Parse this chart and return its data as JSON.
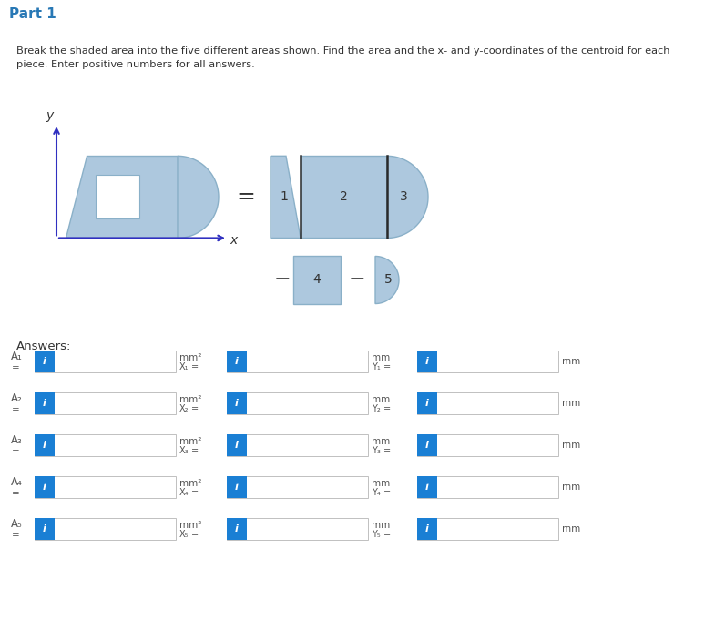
{
  "title": "Part 1",
  "desc1": "Break the shaded area into the five different areas shown. Find the area and the x- and y-coordinates of the centroid for each",
  "desc2": "piece. Enter positive numbers for all answers.",
  "bg_color": "#ffffff",
  "header_bg": "#e8e8e8",
  "shape_fill": "#adc8de",
  "shape_edge": "#8ab0c8",
  "dark_line": "#2a2a2a",
  "blue_btn": "#1a7fd4",
  "input_bg": "#ffffff",
  "input_border": "#c0c0c0",
  "text_color": "#333333",
  "title_color": "#2878b5",
  "axis_color": "#3030c0",
  "answers_label": "Answers:",
  "row_labels": [
    "A₁",
    "A₂",
    "A₃",
    "A₄",
    "A₅"
  ],
  "x_labels": [
    "X₁",
    "X₂",
    "X₃",
    "X₄",
    "X₅"
  ],
  "y_labels": [
    "Y₁",
    "Y₂",
    "Y₃",
    "Y₄",
    "Y₅"
  ],
  "unit_area": "mm²",
  "unit_mm": "mm"
}
